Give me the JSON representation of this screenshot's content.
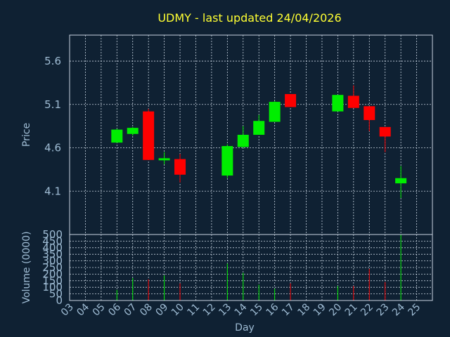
{
  "chart_data": {
    "type": "candlestick",
    "title": "UDMY - last updated 24/04/2026",
    "xlabel": "Day",
    "ylabel": "Price",
    "volume_label": "Volume (0000)",
    "price_ylim": [
      3.6,
      5.9
    ],
    "price_yticks": [
      "4.1",
      "4.6",
      "5.1",
      "5.6"
    ],
    "volume_ylim": [
      0,
      500
    ],
    "volume_yticks": [
      "0",
      "50",
      "100",
      "150",
      "200",
      "250",
      "300",
      "350",
      "400",
      "450",
      "500"
    ],
    "x_ticks": [
      "03",
      "04",
      "05",
      "06",
      "07",
      "08",
      "09",
      "10",
      "11",
      "12",
      "13",
      "14",
      "15",
      "16",
      "17",
      "18",
      "19",
      "20",
      "21",
      "22",
      "23",
      "24",
      "25"
    ],
    "grid": true,
    "colors": {
      "up": "#00ee00",
      "down": "#ff0000",
      "grid": "#c8d4e0",
      "frame": "#c8d4e0"
    },
    "candles": [
      {
        "day": "06",
        "open": 4.66,
        "high": 4.82,
        "low": 4.66,
        "close": 4.81,
        "volume": 80
      },
      {
        "day": "07",
        "open": 4.76,
        "high": 4.84,
        "low": 4.74,
        "close": 4.83,
        "volume": 170
      },
      {
        "day": "08",
        "open": 5.02,
        "high": 5.05,
        "low": 4.46,
        "close": 4.46,
        "volume": 160
      },
      {
        "day": "09",
        "open": 4.47,
        "high": 4.55,
        "low": 4.41,
        "close": 4.48,
        "volume": 190
      },
      {
        "day": "10",
        "open": 4.47,
        "high": 4.53,
        "low": 4.2,
        "close": 4.29,
        "volume": 130
      },
      {
        "day": "13",
        "open": 4.28,
        "high": 4.64,
        "low": 4.25,
        "close": 4.62,
        "volume": 280
      },
      {
        "day": "14",
        "open": 4.61,
        "high": 4.85,
        "low": 4.6,
        "close": 4.75,
        "volume": 210
      },
      {
        "day": "15",
        "open": 4.75,
        "high": 4.98,
        "low": 4.75,
        "close": 4.91,
        "volume": 120
      },
      {
        "day": "16",
        "open": 4.9,
        "high": 5.14,
        "low": 4.9,
        "close": 5.13,
        "volume": 90
      },
      {
        "day": "17",
        "open": 5.22,
        "high": 5.22,
        "low": 5.07,
        "close": 5.07,
        "volume": 130
      },
      {
        "day": "20",
        "open": 5.02,
        "high": 5.21,
        "low": 5.02,
        "close": 5.21,
        "volume": 110
      },
      {
        "day": "21",
        "open": 5.2,
        "high": 5.32,
        "low": 5.06,
        "close": 5.06,
        "volume": 110
      },
      {
        "day": "22",
        "open": 5.08,
        "high": 5.08,
        "low": 4.79,
        "close": 4.92,
        "volume": 240
      },
      {
        "day": "23",
        "open": 4.84,
        "high": 4.84,
        "low": 4.55,
        "close": 4.73,
        "volume": 140
      },
      {
        "day": "24",
        "open": 4.19,
        "high": 4.39,
        "low": 4.02,
        "close": 4.25,
        "volume": 500
      }
    ]
  }
}
